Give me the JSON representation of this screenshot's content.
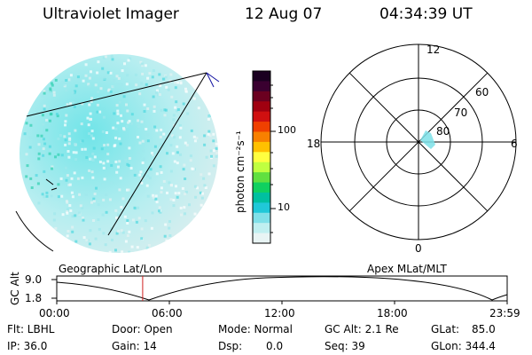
{
  "header": {
    "title": "Ultraviolet Imager",
    "date": "12 Aug 07",
    "time": "04:34:39 UT"
  },
  "colorbar": {
    "unit_label": "photon cm⁻²s⁻¹",
    "ticks": [
      "100",
      "10"
    ],
    "colors": [
      "#1a0020",
      "#3a0030",
      "#6b0020",
      "#a00010",
      "#d01010",
      "#f04000",
      "#f88000",
      "#ffc000",
      "#ffff40",
      "#c0ff40",
      "#60e040",
      "#10d060",
      "#00c0a0",
      "#20c8d8",
      "#80e0e8",
      "#c0eff0",
      "#e8f4f4"
    ]
  },
  "polar": {
    "hour_labels": [
      "12",
      "18",
      "6",
      "0"
    ],
    "lat_labels": [
      "60",
      "70",
      "80"
    ]
  },
  "timeline": {
    "axis_label": "GC Alt",
    "y_ticks": [
      "9.0",
      "1.8"
    ],
    "left_caption": "Geographic Lat/Lon",
    "right_caption": "Apex MLat/MLT",
    "x_ticks": [
      "00:00",
      "06:00",
      "12:00",
      "18:00",
      "23:59"
    ],
    "current_time_hours": 4.58
  },
  "footer": {
    "row1": [
      "Flt: LBHL",
      "Door: Open",
      "Mode: Normal",
      "GC Alt: 2.1 Re",
      "GLat:",
      "85.0"
    ],
    "row2": [
      "IP: 36.0",
      "Gain: 14",
      "Dsp:",
      "0.0",
      "Seq: 39",
      "GLon: 344.4"
    ]
  }
}
